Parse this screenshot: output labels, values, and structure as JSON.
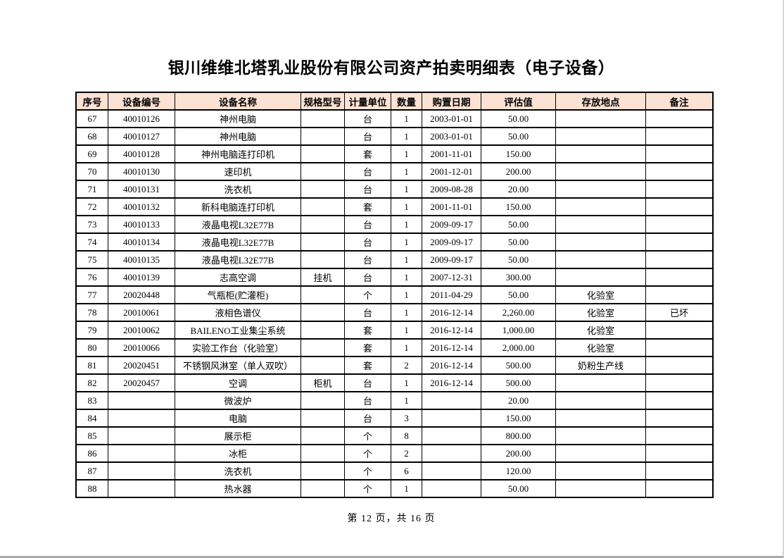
{
  "page": {
    "title": "银川维维北塔乳业股份有限公司资产拍卖明细表（电子设备）",
    "footer": "第 12 页，共 16 页"
  },
  "colors": {
    "table_header_bg": "#fbe2d4",
    "table_border": "#000000"
  },
  "table": {
    "columns": [
      {
        "key": "index",
        "label": "序号"
      },
      {
        "key": "device_id",
        "label": "设备编号"
      },
      {
        "key": "device_name",
        "label": "设备名称"
      },
      {
        "key": "spec_model",
        "label": "规格型号"
      },
      {
        "key": "unit",
        "label": "计量单位"
      },
      {
        "key": "quantity",
        "label": "数量"
      },
      {
        "key": "purchase_date",
        "label": "购置日期"
      },
      {
        "key": "assessed_value",
        "label": "评估值"
      },
      {
        "key": "location",
        "label": "存放地点"
      },
      {
        "key": "remark",
        "label": "备注"
      }
    ],
    "rows": [
      [
        "67",
        "40010126",
        "神州电脑",
        "",
        "台",
        "1",
        "2003-01-01",
        "50.00",
        "",
        ""
      ],
      [
        "68",
        "40010127",
        "神州电脑",
        "",
        "台",
        "1",
        "2003-01-01",
        "50.00",
        "",
        ""
      ],
      [
        "69",
        "40010128",
        "神州电脑连打印机",
        "",
        "套",
        "1",
        "2001-11-01",
        "150.00",
        "",
        ""
      ],
      [
        "70",
        "40010130",
        "速印机",
        "",
        "台",
        "1",
        "2001-12-01",
        "200.00",
        "",
        ""
      ],
      [
        "71",
        "40010131",
        "洗衣机",
        "",
        "台",
        "1",
        "2009-08-28",
        "20.00",
        "",
        ""
      ],
      [
        "72",
        "40010132",
        "新科电脑连打印机",
        "",
        "套",
        "1",
        "2001-11-01",
        "150.00",
        "",
        ""
      ],
      [
        "73",
        "40010133",
        "液晶电视L32E77B",
        "",
        "台",
        "1",
        "2009-09-17",
        "50.00",
        "",
        ""
      ],
      [
        "74",
        "40010134",
        "液晶电视L32E77B",
        "",
        "台",
        "1",
        "2009-09-17",
        "50.00",
        "",
        ""
      ],
      [
        "75",
        "40010135",
        "液晶电视L32E77B",
        "",
        "台",
        "1",
        "2009-09-17",
        "50.00",
        "",
        ""
      ],
      [
        "76",
        "40010139",
        "志高空调",
        "挂机",
        "台",
        "1",
        "2007-12-31",
        "300.00",
        "",
        ""
      ],
      [
        "77",
        "20020448",
        "气瓶柜(贮灌柜)",
        "",
        "个",
        "1",
        "2011-04-29",
        "50.00",
        "化验室",
        ""
      ],
      [
        "78",
        "20010061",
        "液相色谱仪",
        "",
        "台",
        "1",
        "2016-12-14",
        "2,260.00",
        "化验室",
        "已坏"
      ],
      [
        "79",
        "20010062",
        "BAILENO工业集尘系统",
        "",
        "套",
        "1",
        "2016-12-14",
        "1,000.00",
        "化验室",
        ""
      ],
      [
        "80",
        "20010066",
        "实验工作台（化验室）",
        "",
        "套",
        "1",
        "2016-12-14",
        "2,000.00",
        "化验室",
        ""
      ],
      [
        "81",
        "20020451",
        "不锈钢风淋室（单人双吹）",
        "",
        "套",
        "2",
        "2016-12-14",
        "500.00",
        "奶粉生产线",
        ""
      ],
      [
        "82",
        "20020457",
        "空调",
        "柜机",
        "台",
        "1",
        "2016-12-14",
        "500.00",
        "",
        ""
      ],
      [
        "83",
        "",
        "微波炉",
        "",
        "台",
        "1",
        "",
        "20.00",
        "",
        ""
      ],
      [
        "84",
        "",
        "电脑",
        "",
        "台",
        "3",
        "",
        "150.00",
        "",
        ""
      ],
      [
        "85",
        "",
        "展示柜",
        "",
        "个",
        "8",
        "",
        "800.00",
        "",
        ""
      ],
      [
        "86",
        "",
        "冰柜",
        "",
        "个",
        "2",
        "",
        "200.00",
        "",
        ""
      ],
      [
        "87",
        "",
        "洗衣机",
        "",
        "个",
        "6",
        "",
        "120.00",
        "",
        ""
      ],
      [
        "88",
        "",
        "热水器",
        "",
        "个",
        "1",
        "",
        "50.00",
        "",
        ""
      ]
    ]
  }
}
